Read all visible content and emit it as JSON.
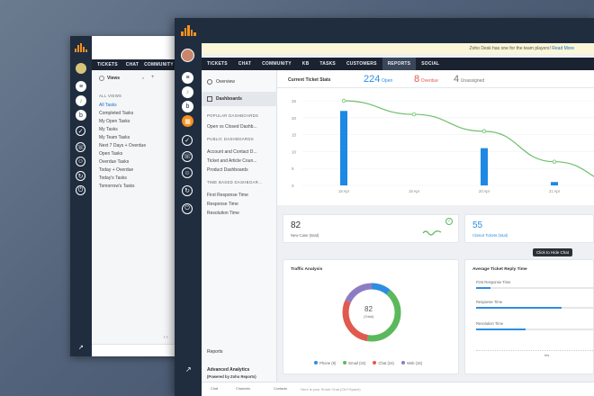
{
  "back_window": {
    "tabs": [
      "TICKETS",
      "CHAT",
      "COMMUNITY"
    ],
    "views_title": "Views",
    "section": "ALL VIEWS",
    "items": [
      "All Tasks",
      "Completed Tasks",
      "My Open Tasks",
      "My Tasks",
      "My Team Tasks",
      "Next 7 Days + Overdue",
      "Open Tasks",
      "Overdue Tasks",
      "Today + Overdue",
      "Today's Tasks",
      "Tomorrow's Tasks"
    ]
  },
  "front": {
    "banner_text": "Zoho Desk has one for the team players!",
    "banner_link": "Read More",
    "nav": [
      "TICKETS",
      "CHAT",
      "COMMUNITY",
      "KB",
      "TASKS",
      "CUSTOMERS",
      "REPORTS",
      "SOCIAL"
    ],
    "sidebar": {
      "overview": "Overview",
      "dashboards": "Dashboards",
      "popular": "POPULAR DASHBOARDS",
      "popular_items": [
        "Open vs Closed Dashb..."
      ],
      "public": "PUBLIC DASHBOARDS",
      "public_items": [
        "Account and Contact D...",
        "Ticket and Article Coun...",
        "Product Dashboards"
      ],
      "time": "TIME BASED DASHBOAR...",
      "time_items": [
        "First Response Time",
        "Response Time",
        "Resolution Time"
      ],
      "reports": "Reports",
      "advanced": "Advanced Analytics",
      "advanced_sub": "(Powered by Zoho Reports)"
    },
    "stats": {
      "title": "Current Ticket Stats",
      "open_num": "224",
      "open_label": "Open",
      "overdue_num": "8",
      "overdue_label": "Overdue",
      "unassigned_num": "4",
      "unassigned_label": "Unassigned"
    },
    "new_case": {
      "num": "82",
      "label": "New Case (total)"
    },
    "closed": {
      "num": "55",
      "label": "Closed Tickets (total)"
    },
    "tooltip": "Click to Hide Chat",
    "traffic": {
      "title": "Traffic Analysis",
      "center_num": "82",
      "center_label": "(Total)",
      "legend": [
        "Phone (9)",
        "Email (34)",
        "Chat (24)",
        "Web (15)"
      ]
    },
    "reply": {
      "title": "Average Ticket Reply Time",
      "rows": [
        "First Response Time",
        "Response Time",
        "Resolution Time"
      ],
      "axis_label": "hrs"
    },
    "chat_placeholder": "Here is your Smart Chat (Ctrl+Space)",
    "bottom_labels": [
      "Chat",
      "Channels",
      "Contacts"
    ]
  },
  "colors": {
    "accent": "#2d8ee0",
    "overdue": "#e05a4e",
    "green": "#5cb85c",
    "orange": "#f7911d",
    "purple": "#8e7cc3"
  },
  "chart_data": {
    "type": "bar",
    "categories": [
      "18 Apr",
      "19 Apr",
      "20 Apr",
      "21 Apr",
      "22 Apr"
    ],
    "ylim": [
      0,
      25
    ],
    "yticks": [
      "25",
      "20",
      "15",
      "10",
      "5",
      "0"
    ],
    "series": [
      {
        "type": "bar",
        "values": [
          22,
          null,
          11,
          1,
          null
        ]
      },
      {
        "type": "line",
        "values": [
          25,
          21,
          16,
          7,
          0
        ]
      }
    ]
  }
}
